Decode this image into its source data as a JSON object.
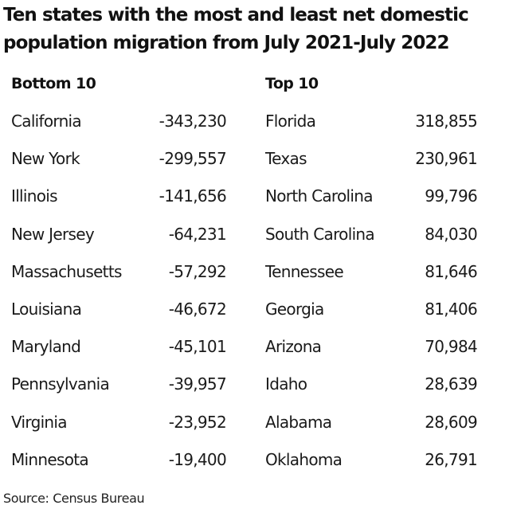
{
  "chart_data": {
    "type": "table",
    "title": "Ten states with the most and least net domestic population migration from July 2021-July 2022",
    "tables": [
      {
        "name": "Bottom 10",
        "rows": [
          {
            "state": "California",
            "value": "-343,230"
          },
          {
            "state": "New York",
            "value": "-299,557"
          },
          {
            "state": "Illinois",
            "value": "-141,656"
          },
          {
            "state": "New Jersey",
            "value": "-64,231"
          },
          {
            "state": "Massachusetts",
            "value": "-57,292"
          },
          {
            "state": "Louisiana",
            "value": "-46,672"
          },
          {
            "state": "Maryland",
            "value": "-45,101"
          },
          {
            "state": "Pennsylvania",
            "value": "-39,957"
          },
          {
            "state": "Virginia",
            "value": "-23,952"
          },
          {
            "state": "Minnesota",
            "value": "-19,400"
          }
        ]
      },
      {
        "name": "Top 10",
        "rows": [
          {
            "state": "Florida",
            "value": "318,855"
          },
          {
            "state": "Texas",
            "value": "230,961"
          },
          {
            "state": "North Carolina",
            "value": "99,796"
          },
          {
            "state": "South Carolina",
            "value": "84,030"
          },
          {
            "state": "Tennessee",
            "value": "81,646"
          },
          {
            "state": "Georgia",
            "value": "81,406"
          },
          {
            "state": "Arizona",
            "value": "70,984"
          },
          {
            "state": "Idaho",
            "value": "28,639"
          },
          {
            "state": "Alabama",
            "value": "28,609"
          },
          {
            "state": "Oklahoma",
            "value": "26,791"
          }
        ]
      }
    ],
    "source": "Source: Census Bureau"
  }
}
